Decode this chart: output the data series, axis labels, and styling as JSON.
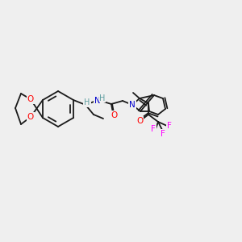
{
  "bg_color": "#efefef",
  "bond_color": "#1a1a1a",
  "colors": {
    "O": "#ff0000",
    "N": "#0000cd",
    "F": "#ff00ff",
    "C": "#1a1a1a",
    "H": "#5f9ea0"
  },
  "font_size": 7.5,
  "line_width": 1.3
}
